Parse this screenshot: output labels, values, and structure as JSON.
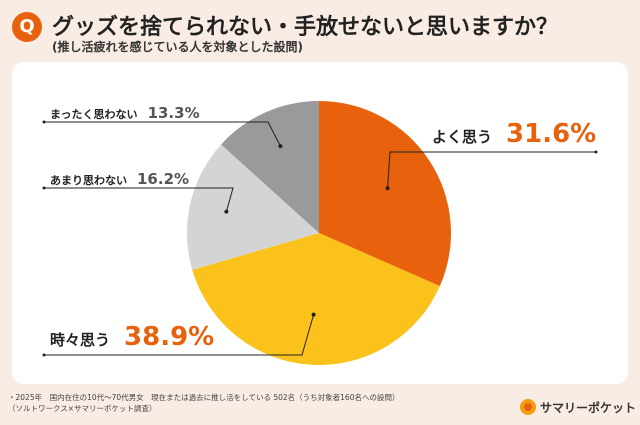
{
  "header": {
    "badge": "Q",
    "title": "グッズを捨てられない・手放せないと思いますか？",
    "subtitle": "(推し活疲れを感じている人を対象とした設問)"
  },
  "footnote": {
    "line1": "・2025年　国内在住の10代〜70代男女　現在または過去に推し活をしている 502名（うち対象者160名への設問）",
    "line2": "（ソルトワークス×サマリーポケット調査）"
  },
  "brand": {
    "name": "サマリーポケット"
  },
  "chart_data": {
    "type": "pie",
    "start": "12 o'clock, clockwise",
    "slices": [
      {
        "label": "よく思う",
        "value": 31.6,
        "display": "31.6%",
        "color": "#e8620d",
        "label_color": "#e8620d"
      },
      {
        "label": "時々思う",
        "value": 38.9,
        "display": "38.9%",
        "color": "#fbc21c",
        "label_color": "#e8620d"
      },
      {
        "label": "あまり思わない",
        "value": 16.2,
        "display": "16.2%",
        "color": "#d4d4d4",
        "label_color": "#555555"
      },
      {
        "label": "まったく思わない",
        "value": 13.3,
        "display": "13.3%",
        "color": "#9a9a9a",
        "label_color": "#555555"
      }
    ]
  }
}
